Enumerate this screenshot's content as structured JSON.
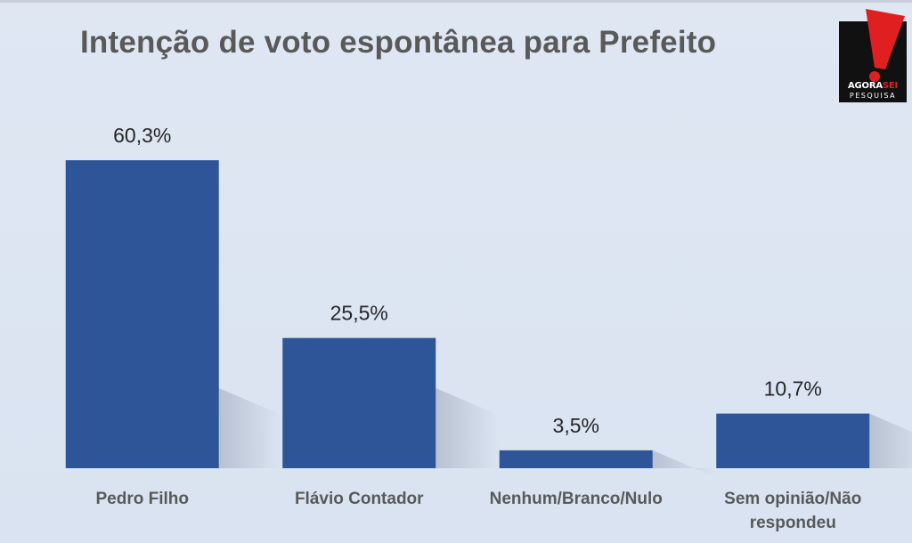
{
  "chart_data": {
    "type": "bar",
    "title": "Intenção de voto espontânea para Prefeito",
    "xlabel": "",
    "ylabel": "",
    "categories": [
      [
        "Pedro Filho"
      ],
      [
        "Flávio Contador"
      ],
      [
        "Nenhum/Branco/Nulo"
      ],
      [
        "Sem opinião/Não",
        "respondeu"
      ]
    ],
    "values": [
      60.3,
      25.5,
      3.5,
      10.7
    ],
    "data_labels": [
      "60,3%",
      "25,5%",
      "3,5%",
      "10,7%"
    ],
    "unit": "%",
    "ylim": [
      0,
      60.3
    ],
    "grid": false,
    "legend": "none",
    "bar_color": "#2e5597"
  },
  "logo": {
    "text_part1": "AGORA",
    "text_part2": "SEI",
    "subtext": "PESQUISA",
    "accent_color": "#e02020"
  }
}
